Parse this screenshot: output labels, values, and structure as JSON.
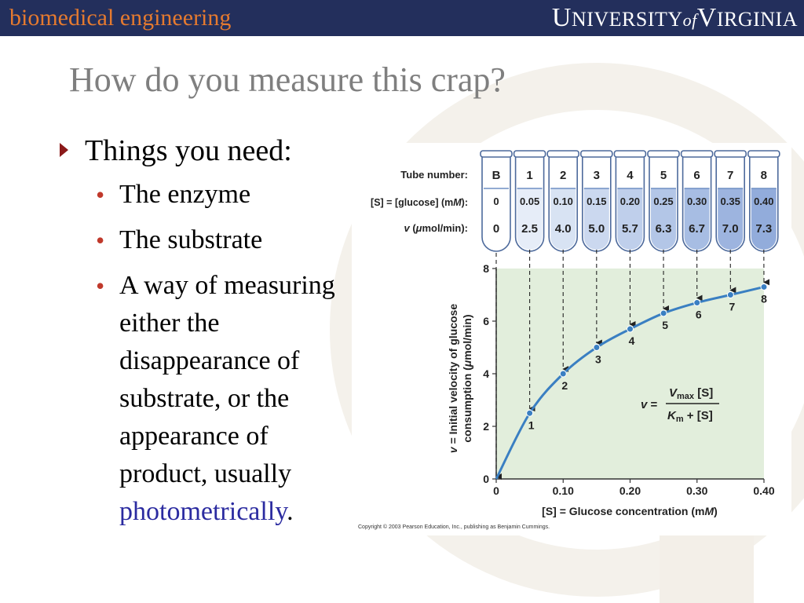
{
  "header": {
    "brand_left": "biomedical engineering",
    "brand_right_u": "U",
    "brand_right_niversity": "NIVERSITY",
    "brand_right_of": "of",
    "brand_right_v": "V",
    "brand_right_irginia": "IRGINIA"
  },
  "slide": {
    "title": "How do you measure this crap?",
    "bullet_main": "Things you need:",
    "sub_bullets": {
      "b0": "The enzyme",
      "b1": "The substrate",
      "b2_text": "A way of measuring either the disappearance of substrate, or the appearance of product, usually ",
      "b2_highlight": "photometrically",
      "b2_end": "."
    },
    "bullet_glyph": "•"
  },
  "figure": {
    "row_labels": {
      "tube": "Tube number:",
      "s_prefix": "[S] = [glucose] (m",
      "s_unit_m": "M",
      "s_suffix": "):",
      "v_prefix": "v",
      "v_mid": " (",
      "v_mu": "μ",
      "v_suffix": "mol/min):"
    },
    "y_axis_label_line1_v": "v",
    "y_axis_label_line1_rest": " = Initial velocity of glucose",
    "y_axis_label_line2_a": "consumption (",
    "y_axis_label_line2_mu": "μ",
    "y_axis_label_line2_b": "mol/min)",
    "x_axis_label_a": "[S] = Glucose concentration (m",
    "x_axis_label_m": "M",
    "x_axis_label_b": ")",
    "equation": {
      "v": "v",
      "eq": " =",
      "vmax_v": "V",
      "vmax_sub": "max",
      "num_rest": " [S]",
      "km_k": "K",
      "km_sub": "m",
      "den_rest": " + [S]"
    },
    "copyright": "Copyright © 2003 Pearson Education, Inc., publishing as Benjamin Cummings."
  },
  "chart_data": {
    "type": "scatter",
    "tubes": [
      "B",
      "1",
      "2",
      "3",
      "4",
      "5",
      "6",
      "7",
      "8"
    ],
    "s_labels": [
      "0",
      "0.05",
      "0.10",
      "0.15",
      "0.20",
      "0.25",
      "0.30",
      "0.35",
      "0.40"
    ],
    "v_labels": [
      "0",
      "2.5",
      "4.0",
      "5.0",
      "5.7",
      "6.3",
      "6.7",
      "7.0",
      "7.3"
    ],
    "x": [
      0,
      0.05,
      0.1,
      0.15,
      0.2,
      0.25,
      0.3,
      0.35,
      0.4
    ],
    "y": [
      0,
      2.5,
      4.0,
      5.0,
      5.7,
      6.3,
      6.7,
      7.0,
      7.3
    ],
    "point_labels": [
      "",
      "1",
      "2",
      "3",
      "4",
      "5",
      "6",
      "7",
      "8"
    ],
    "xlim": [
      0,
      0.4
    ],
    "ylim": [
      0,
      8
    ],
    "x_ticks": [
      "0",
      "0.10",
      "0.20",
      "0.30",
      "0.40"
    ],
    "y_ticks": [
      "0",
      "2",
      "4",
      "6",
      "8"
    ],
    "plot_bg": "#e2eedc",
    "curve_color": "#3a7fc2",
    "point_color": "#3a7fc2",
    "tube_fill_colors": [
      "#ffffff",
      "#e6edf8",
      "#d8e3f3",
      "#cbd8ef",
      "#bfcfeb",
      "#b3c6e7",
      "#a7bde3",
      "#9db4df",
      "#92acdb"
    ]
  }
}
